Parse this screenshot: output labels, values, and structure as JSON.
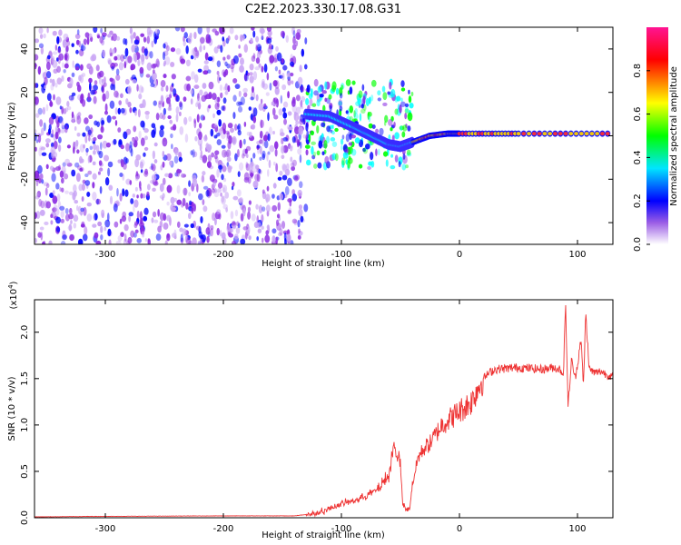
{
  "title": "C2E2.2023.330.17.08.G31",
  "chart_data": [
    {
      "type": "heatmap",
      "xlabel": "Height of straight line (km)",
      "ylabel": "Frequency (Hz)",
      "xlim": [
        -360,
        130
      ],
      "ylim": [
        -50,
        50
      ],
      "xticks": [
        -300,
        -200,
        -100,
        0,
        100
      ],
      "yticks": [
        -40,
        -20,
        0,
        20,
        40
      ],
      "grid": false,
      "colorbar": {
        "label": "Normalized spectral amplitude",
        "range": [
          0.0,
          1.0
        ],
        "ticks": [
          0.0,
          0.2,
          0.4,
          0.6,
          0.8
        ],
        "colormap": [
          "#ffffff",
          "#6a0dad",
          "#0000ff",
          "#00ffff",
          "#00ff00",
          "#ffff00",
          "#ff0000",
          "#ff00a0"
        ]
      },
      "regions": [
        {
          "name": "noise",
          "x": [
            -360,
            -130
          ],
          "y": [
            -50,
            50
          ],
          "amplitude": 0.15
        },
        {
          "name": "transition",
          "x": [
            -130,
            -40
          ],
          "y": [
            -15,
            25
          ],
          "amplitude": 0.35
        },
        {
          "name": "carrier",
          "x": [
            -40,
            130
          ],
          "y": [
            0,
            3
          ],
          "amplitude": 0.9
        }
      ],
      "carrier_frequency": [
        {
          "x": -130,
          "y": 10
        },
        {
          "x": -110,
          "y": 9
        },
        {
          "x": -90,
          "y": 4
        },
        {
          "x": -75,
          "y": 0
        },
        {
          "x": -60,
          "y": -4
        },
        {
          "x": -50,
          "y": -5
        },
        {
          "x": -40,
          "y": -3
        },
        {
          "x": -25,
          "y": 0
        },
        {
          "x": -10,
          "y": 1
        },
        {
          "x": 0,
          "y": 1
        },
        {
          "x": 50,
          "y": 1
        },
        {
          "x": 130,
          "y": 1
        }
      ]
    },
    {
      "type": "line",
      "xlabel": "Height of straight line (km)",
      "ylabel": "SNR (10 * v/v)",
      "yscale_label": "(x10",
      "yscale_exp": "4",
      "yscale_close": ")",
      "xlim": [
        -360,
        130
      ],
      "ylim": [
        0,
        2.35
      ],
      "xticks": [
        -300,
        -200,
        -100,
        0,
        100
      ],
      "yticks": [
        "0.0",
        "0.5",
        "1.0",
        "1.5",
        "2.0"
      ],
      "color": "#ee3333",
      "grid": false,
      "series": [
        {
          "x": [
            -360,
            -300,
            -200,
            -140,
            -120,
            -100,
            -85,
            -70,
            -60,
            -55,
            -50,
            -48,
            -45,
            -42,
            -40,
            -35,
            -30,
            -25,
            -20,
            -15,
            -10,
            -5,
            0,
            5,
            10,
            15,
            20,
            25,
            30,
            40,
            50,
            60,
            70,
            80,
            85,
            88,
            90,
            92,
            95,
            98,
            100,
            103,
            105,
            107,
            110,
            115,
            120,
            125,
            130
          ],
          "y": [
            0.01,
            0.015,
            0.02,
            0.02,
            0.05,
            0.15,
            0.2,
            0.3,
            0.45,
            0.8,
            0.55,
            0.15,
            0.08,
            0.1,
            0.35,
            0.65,
            0.75,
            0.8,
            0.9,
            1.0,
            1.05,
            1.1,
            1.15,
            1.2,
            1.25,
            1.38,
            1.5,
            1.56,
            1.6,
            1.61,
            1.62,
            1.61,
            1.6,
            1.62,
            1.6,
            1.55,
            2.3,
            1.2,
            1.7,
            1.5,
            1.65,
            1.95,
            1.4,
            2.2,
            1.6,
            1.56,
            1.58,
            1.54,
            1.52
          ]
        }
      ]
    }
  ]
}
